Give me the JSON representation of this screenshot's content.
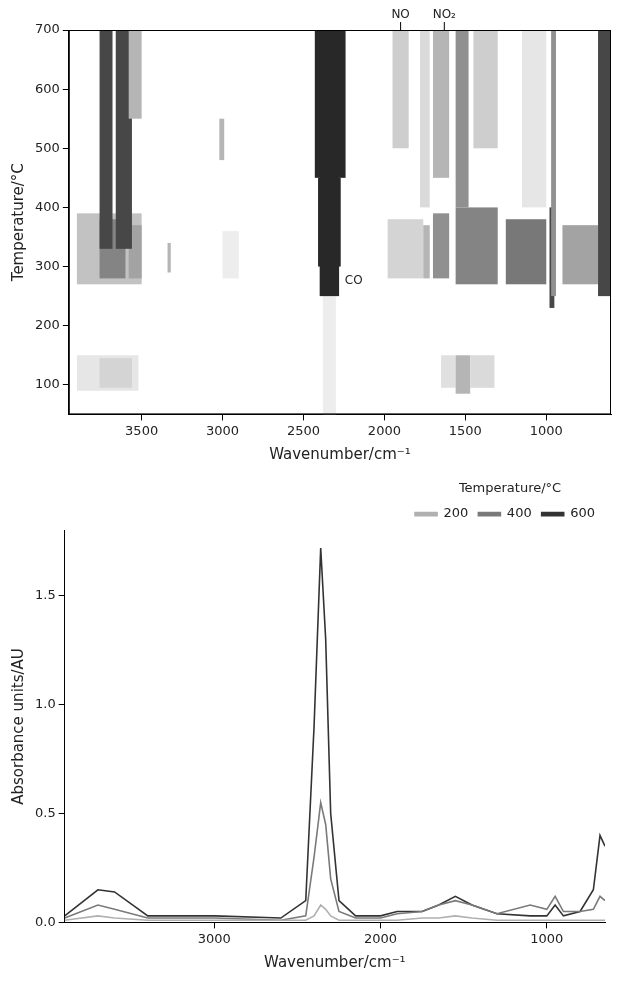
{
  "chart_data": [
    {
      "type": "heatmap",
      "x_label": "Wavenumber/cm⁻¹",
      "y_label": "Temperature/°C",
      "xlim": [
        3950,
        600
      ],
      "xticks": [
        3500,
        3000,
        2500,
        2000,
        1500,
        1000
      ],
      "ylim": [
        50,
        700
      ],
      "yticks": [
        100,
        200,
        300,
        400,
        500,
        600,
        700
      ],
      "grid": false,
      "zlim": [
        0,
        0.35
      ],
      "cells": [
        [
          3900,
          3520,
          90,
          150,
          0.04
        ],
        [
          3760,
          3560,
          95,
          145,
          0.07
        ],
        [
          1650,
          1560,
          95,
          150,
          0.05
        ],
        [
          1560,
          1470,
          85,
          150,
          0.12
        ],
        [
          1470,
          1320,
          95,
          150,
          0.06
        ],
        [
          2380,
          2300,
          50,
          250,
          0.03
        ],
        [
          3900,
          3500,
          270,
          390,
          0.1
        ],
        [
          3760,
          3600,
          280,
          380,
          0.2
        ],
        [
          3580,
          3500,
          280,
          370,
          0.15
        ],
        [
          3340,
          3320,
          290,
          340,
          0.12
        ],
        [
          3000,
          2900,
          280,
          360,
          0.03
        ],
        [
          1980,
          1760,
          280,
          380,
          0.07
        ],
        [
          1760,
          1720,
          280,
          370,
          0.12
        ],
        [
          1700,
          1600,
          280,
          390,
          0.18
        ],
        [
          1560,
          1300,
          270,
          400,
          0.2
        ],
        [
          1560,
          1480,
          400,
          700,
          0.18
        ],
        [
          1250,
          1000,
          270,
          380,
          0.22
        ],
        [
          980,
          950,
          230,
          400,
          0.3
        ],
        [
          970,
          940,
          250,
          700,
          0.18
        ],
        [
          900,
          680,
          270,
          370,
          0.15
        ],
        [
          680,
          600,
          250,
          700,
          0.3
        ],
        [
          3760,
          3680,
          330,
          700,
          0.3
        ],
        [
          3660,
          3560,
          330,
          700,
          0.3
        ],
        [
          3580,
          3500,
          550,
          700,
          0.12
        ],
        [
          3020,
          2990,
          480,
          550,
          0.12
        ],
        [
          1950,
          1850,
          500,
          700,
          0.08
        ],
        [
          1700,
          1600,
          450,
          700,
          0.12
        ],
        [
          1780,
          1720,
          400,
          700,
          0.06
        ],
        [
          1450,
          1300,
          500,
          700,
          0.08
        ],
        [
          1150,
          1000,
          400,
          700,
          0.04
        ],
        [
          2400,
          2280,
          250,
          700,
          0.35
        ],
        [
          2410,
          2270,
          300,
          450,
          0.35
        ],
        [
          2430,
          2240,
          450,
          700,
          0.35
        ]
      ],
      "annotations": [
        {
          "text": "NO",
          "x": 1900,
          "y": 700
        },
        {
          "text": "NO₂",
          "x": 1630,
          "y": 700
        },
        {
          "text": "CO",
          "x": 2190,
          "y": 275
        }
      ]
    },
    {
      "type": "line",
      "x_label": "Wavenumber/cm⁻¹",
      "y_label": "Absorbance units/AU",
      "z_label": "Temperature/°C",
      "x": [
        3900,
        3700,
        3600,
        3400,
        3000,
        2600,
        2450,
        2400,
        2360,
        2330,
        2300,
        2250,
        2150,
        2000,
        1900,
        1750,
        1650,
        1550,
        1450,
        1300,
        1100,
        1000,
        950,
        900,
        800,
        720,
        680,
        650
      ],
      "series": [
        {
          "name": "200",
          "color": "#b0b0b0",
          "values": [
            0.01,
            0.03,
            0.02,
            0.01,
            0.01,
            0.01,
            0.01,
            0.03,
            0.08,
            0.06,
            0.03,
            0.01,
            0.01,
            0.01,
            0.01,
            0.02,
            0.02,
            0.03,
            0.02,
            0.01,
            0.01,
            0.01,
            0.01,
            0.01,
            0.01,
            0.01,
            0.01,
            0.01
          ]
        },
        {
          "name": "400",
          "color": "#7a7a7a",
          "values": [
            0.02,
            0.08,
            0.06,
            0.02,
            0.02,
            0.01,
            0.03,
            0.3,
            0.55,
            0.45,
            0.2,
            0.05,
            0.02,
            0.02,
            0.04,
            0.05,
            0.08,
            0.1,
            0.08,
            0.04,
            0.08,
            0.06,
            0.12,
            0.05,
            0.05,
            0.06,
            0.12,
            0.1
          ]
        },
        {
          "name": "600",
          "color": "#333333",
          "values": [
            0.03,
            0.15,
            0.14,
            0.03,
            0.03,
            0.02,
            0.1,
            0.9,
            1.72,
            1.3,
            0.5,
            0.1,
            0.03,
            0.03,
            0.05,
            0.05,
            0.08,
            0.12,
            0.08,
            0.04,
            0.03,
            0.03,
            0.08,
            0.03,
            0.05,
            0.15,
            0.4,
            0.35
          ]
        }
      ],
      "xlim": [
        3900,
        650
      ],
      "xticks": [
        3000,
        2000,
        1000
      ],
      "ylim": [
        0,
        1.8
      ],
      "yticks": [
        {
          "value": 0,
          "label": "0.0"
        },
        {
          "value": 0.5,
          "label": "0.5"
        },
        {
          "value": 1,
          "label": "1.0"
        },
        {
          "value": 1.5,
          "label": "1.5"
        }
      ],
      "grid": false,
      "legend": "top-right"
    }
  ]
}
